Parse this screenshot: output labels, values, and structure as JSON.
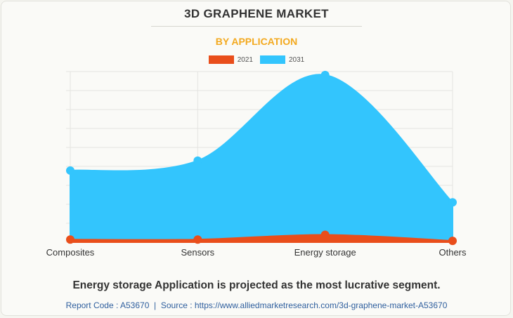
{
  "chart_data": {
    "type": "area",
    "title": "3D GRAPHENE MARKET",
    "subtitle": "BY APPLICATION",
    "categories": [
      "Composites",
      "Sensors",
      "Energy storage",
      "Others"
    ],
    "series": [
      {
        "name": "2021",
        "color": "#e94e1b",
        "values": [
          1.4,
          1.4,
          3.9,
          0.7
        ]
      },
      {
        "name": "2031",
        "color": "#33c5fd",
        "values": [
          37.8,
          43.0,
          88.2,
          21.0
        ]
      }
    ],
    "ylim": [
      0,
      90
    ],
    "grid": true,
    "legend_position": "top-center",
    "xlabel": "",
    "ylabel": ""
  },
  "footer": {
    "highlight": "Energy storage Application is projected as the most lucrative segment.",
    "report_code": "Report Code : A53670",
    "separator": "|",
    "source": "Source : https://www.alliedmarketresearch.com/3d-graphene-market-A53670"
  }
}
